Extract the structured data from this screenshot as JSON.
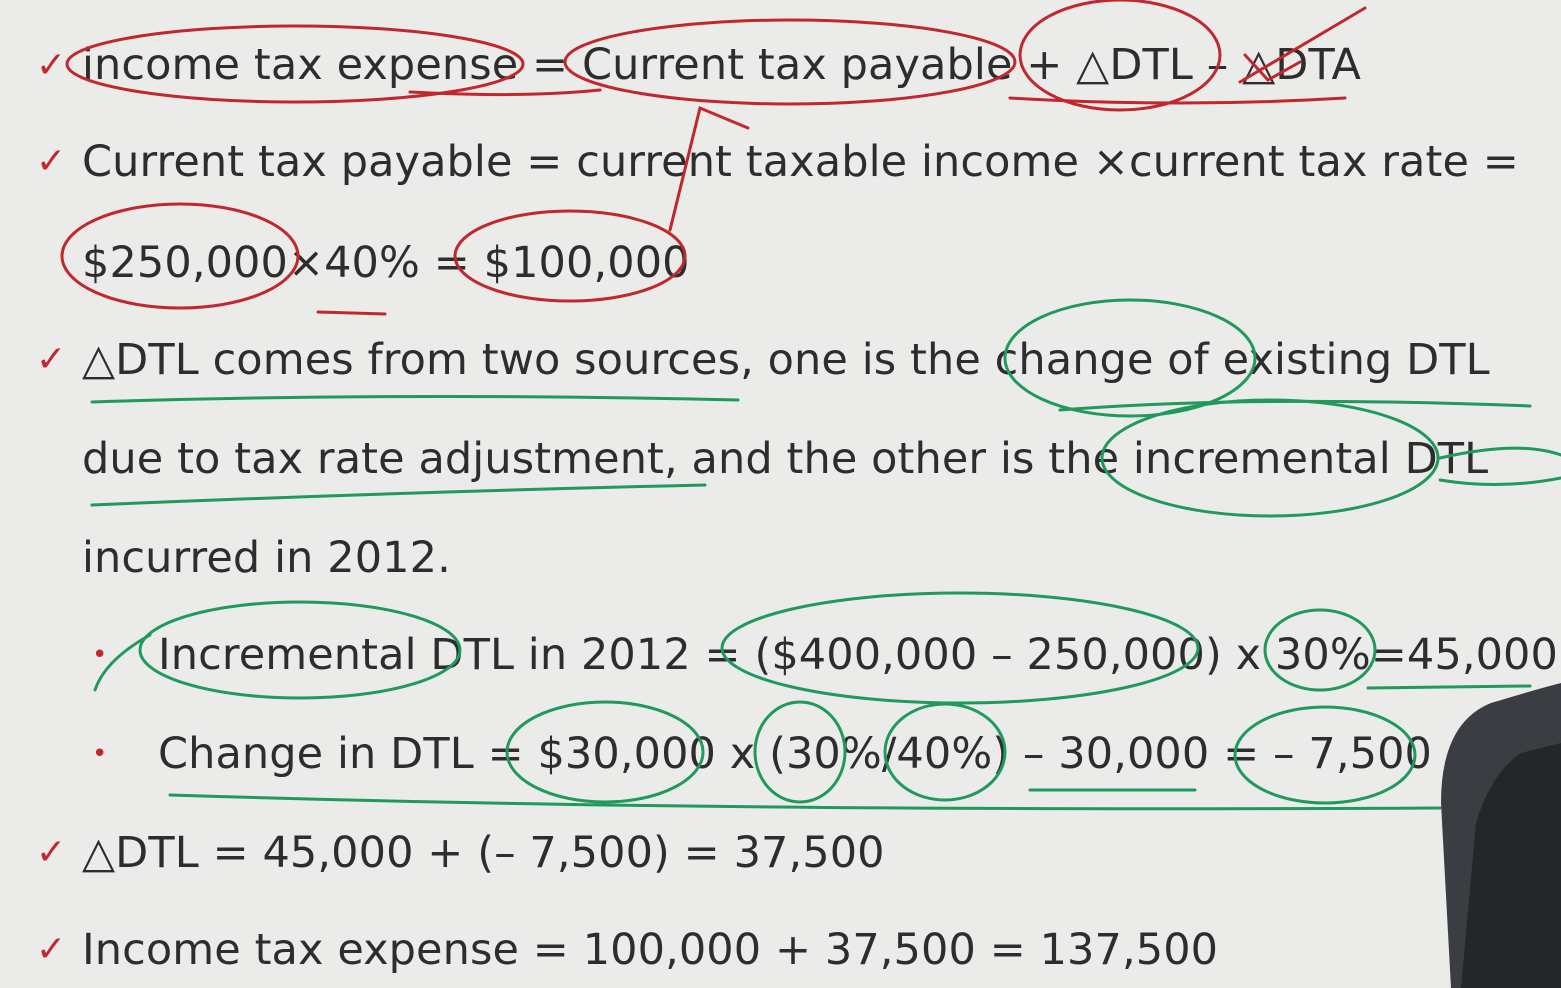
{
  "lines": [
    {
      "text": "income tax expense = Current tax payable + △DTL – △DTA",
      "check": "✓"
    },
    {
      "text": "Current tax payable = current taxable income ×current tax rate =",
      "check": "✓"
    },
    {
      "text": "$250,000×40% = $100,000"
    },
    {
      "text": "△DTL comes from two sources, one is the change of existing DTL",
      "check": "✓"
    },
    {
      "text": "due to tax rate adjustment, and the other is the incremental DTL"
    },
    {
      "text": "incurred in 2012."
    },
    {
      "text": "Incremental DTL in 2012 = ($400,000 – 250,000) x 30%=45,000",
      "bullet": "•"
    },
    {
      "text": "Change in DTL = $30,000 x (30%/40%) – 30,000 = – 7,500",
      "bullet": "•"
    },
    {
      "text": "△DTL = 45,000 + (– 7,500) = 37,500",
      "check": "✓"
    },
    {
      "text": "Income tax expense = 100,000 + 37,500 = 137,500",
      "check": "✓"
    }
  ],
  "colors": {
    "background": "#ebebea",
    "text": "#2d2d2d",
    "red_ink": "#c1272d",
    "green_ink": "#1f9a5a"
  }
}
